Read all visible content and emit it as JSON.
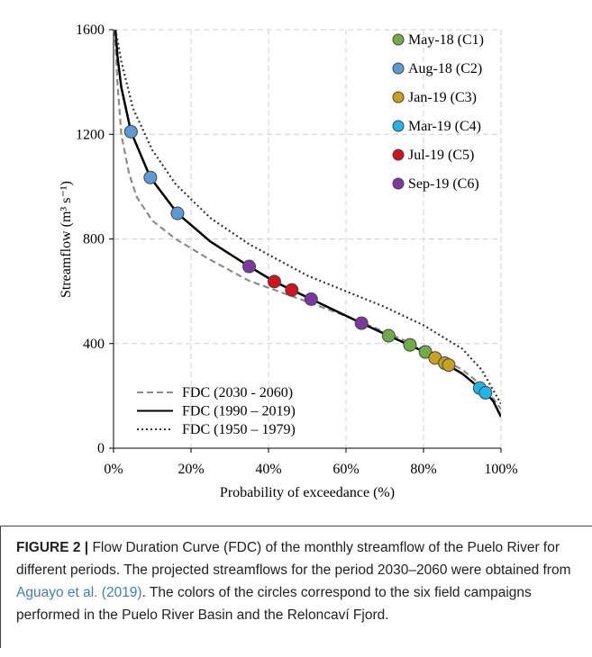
{
  "chart_data": {
    "type": "line",
    "xlabel": "Probability of exceedance (%)",
    "ylabel": "Streamflow (m³ s⁻¹)",
    "xlim": [
      0,
      100
    ],
    "ylim": [
      0,
      1600
    ],
    "xticks": [
      {
        "value": 0,
        "label": "0%"
      },
      {
        "value": 20,
        "label": "20%"
      },
      {
        "value": 40,
        "label": "40%"
      },
      {
        "value": 60,
        "label": "60%"
      },
      {
        "value": 80,
        "label": "80%"
      },
      {
        "value": 100,
        "label": "100%"
      }
    ],
    "yticks": [
      0,
      400,
      800,
      1200,
      1600
    ],
    "grid": true,
    "series": [
      {
        "name": "FDC (2030 - 2060)",
        "type": "line",
        "dash": "dashed",
        "color": "#8c8c8c",
        "x": [
          0.3,
          1,
          2,
          4,
          6,
          10,
          16,
          25,
          35,
          50,
          60,
          70,
          80,
          90,
          96,
          100
        ],
        "values": [
          1600,
          1400,
          1200,
          1050,
          960,
          870,
          800,
          720,
          640,
          560,
          505,
          445,
          380,
          300,
          230,
          150
        ]
      },
      {
        "name": "FDC (1990 – 2019)",
        "type": "line",
        "dash": "solid",
        "color": "#000000",
        "x": [
          0.5,
          1,
          2,
          4.5,
          9.5,
          16.5,
          25,
          35,
          41.5,
          46,
          51,
          64,
          71,
          80,
          86,
          90,
          94.5,
          96,
          98,
          100
        ],
        "values": [
          1600,
          1500,
          1380,
          1210,
          1035,
          898,
          790,
          695,
          637,
          605,
          570,
          478,
          430,
          370,
          320,
          285,
          230,
          212,
          180,
          120
        ]
      },
      {
        "name": "FDC (1950 – 1979)",
        "type": "line",
        "dash": "dotted",
        "color": "#333333",
        "x": [
          0.5,
          2,
          5,
          10,
          16,
          25,
          35,
          50,
          60,
          70,
          80,
          90,
          95,
          100
        ],
        "values": [
          1600,
          1480,
          1300,
          1140,
          1010,
          880,
          780,
          660,
          600,
          540,
          470,
          380,
          300,
          170
        ]
      },
      {
        "name": "May-18 (C1)",
        "type": "scatter",
        "color": "#70ad47",
        "x": [
          71,
          76.5,
          80.5
        ],
        "values": [
          430,
          395,
          368
        ]
      },
      {
        "name": "Aug-18 (C2)",
        "type": "scatter",
        "color": "#5b9bd5",
        "x": [
          4.5,
          9.5,
          16.5
        ],
        "values": [
          1210,
          1035,
          898
        ]
      },
      {
        "name": "Jan-19 (C3)",
        "type": "scatter",
        "color": "#c9a020",
        "x": [
          83,
          85.5,
          86.5
        ],
        "values": [
          345,
          325,
          318
        ]
      },
      {
        "name": "Mar-19 (C4)",
        "type": "scatter",
        "color": "#1fb5e9",
        "x": [
          94.5,
          96
        ],
        "values": [
          230,
          212
        ]
      },
      {
        "name": "Jul-19 (C5)",
        "type": "scatter",
        "color": "#d0141c",
        "x": [
          41.5,
          46
        ],
        "values": [
          637,
          605
        ]
      },
      {
        "name": "Sep-19 (C6)",
        "type": "scatter",
        "color": "#7b38a0",
        "x": [
          35,
          51,
          64
        ],
        "values": [
          695,
          570,
          478
        ]
      }
    ]
  },
  "caption": {
    "label": "FIGURE 2 |",
    "text_before": "Flow Duration Curve (FDC) of the monthly streamflow of the Puelo River for different periods. The projected streamflows for the period 2030–2060 were obtained from",
    "link": "Aguayo et al. (2019)",
    "text_after": ". The colors of the circles correspond to the six field campaigns performed in the Puelo River Basin and the Reloncaví Fjord."
  }
}
